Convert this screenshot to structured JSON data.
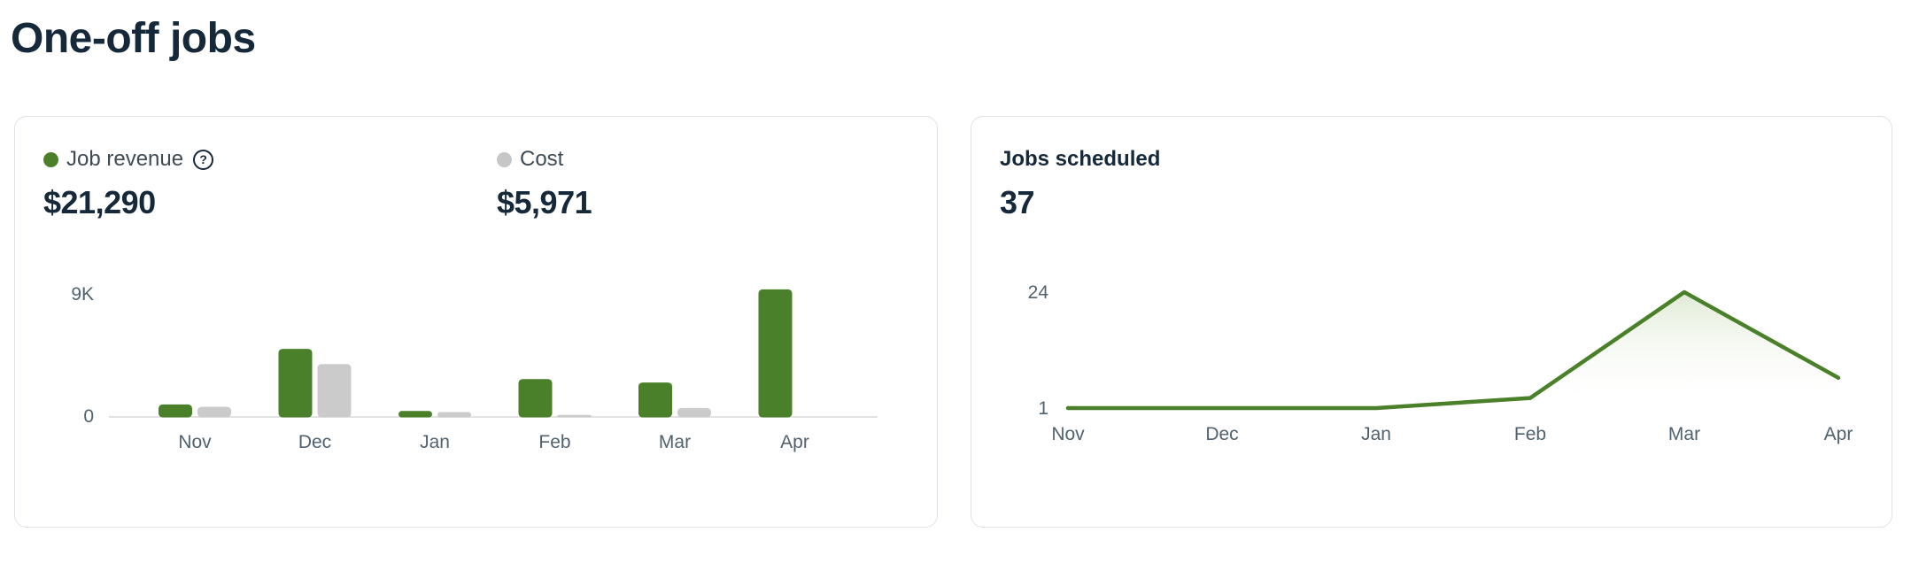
{
  "page": {
    "title": "One-off jobs"
  },
  "colors": {
    "green": "#4a8029",
    "gray_bar": "#cbcbcb",
    "navy": "#16293a",
    "axis_label": "#50626f",
    "axis_line": "#d8d8d8",
    "card_border": "#dde3e9",
    "area_fill_top": "#dce8d0"
  },
  "left_card": {
    "help_glyph": "?",
    "legend": [
      {
        "label": "Job revenue",
        "value": "$21,290",
        "dot_color": "#4a8029",
        "has_help_icon": true
      },
      {
        "label": "Cost",
        "value": "$5,971",
        "dot_color": "#c6c6c6",
        "has_help_icon": false
      }
    ]
  },
  "right_card": {
    "title": "Jobs scheduled",
    "value": "37"
  },
  "chart_data": [
    {
      "type": "bar",
      "title": "Job revenue vs Cost by month",
      "categories": [
        "Nov",
        "Dec",
        "Jan",
        "Feb",
        "Mar",
        "Apr"
      ],
      "series": [
        {
          "name": "Job revenue",
          "color": "#4a8029",
          "values": [
            950,
            5050,
            470,
            2820,
            2570,
            9430
          ]
        },
        {
          "name": "Cost",
          "color": "#cbcbcb",
          "values": [
            780,
            3930,
            390,
            180,
            691,
            0
          ]
        }
      ],
      "xlabel": "",
      "ylabel": "",
      "ylim": [
        0,
        9430
      ],
      "yticks": [
        {
          "value": 0,
          "label": "0"
        },
        {
          "value": 9000,
          "label": "9K"
        }
      ],
      "grid": false,
      "legend_position": "top"
    },
    {
      "type": "area",
      "title": "Jobs scheduled by month",
      "x": [
        "Nov",
        "Dec",
        "Jan",
        "Feb",
        "Mar",
        "Apr"
      ],
      "values": [
        1,
        1,
        1,
        3,
        24,
        7
      ],
      "xlabel": "",
      "ylabel": "",
      "ylim": [
        1,
        24
      ],
      "yticks": [
        {
          "value": 1,
          "label": "1"
        },
        {
          "value": 24,
          "label": "24"
        }
      ],
      "grid": false,
      "line_color": "#4a8029"
    }
  ]
}
